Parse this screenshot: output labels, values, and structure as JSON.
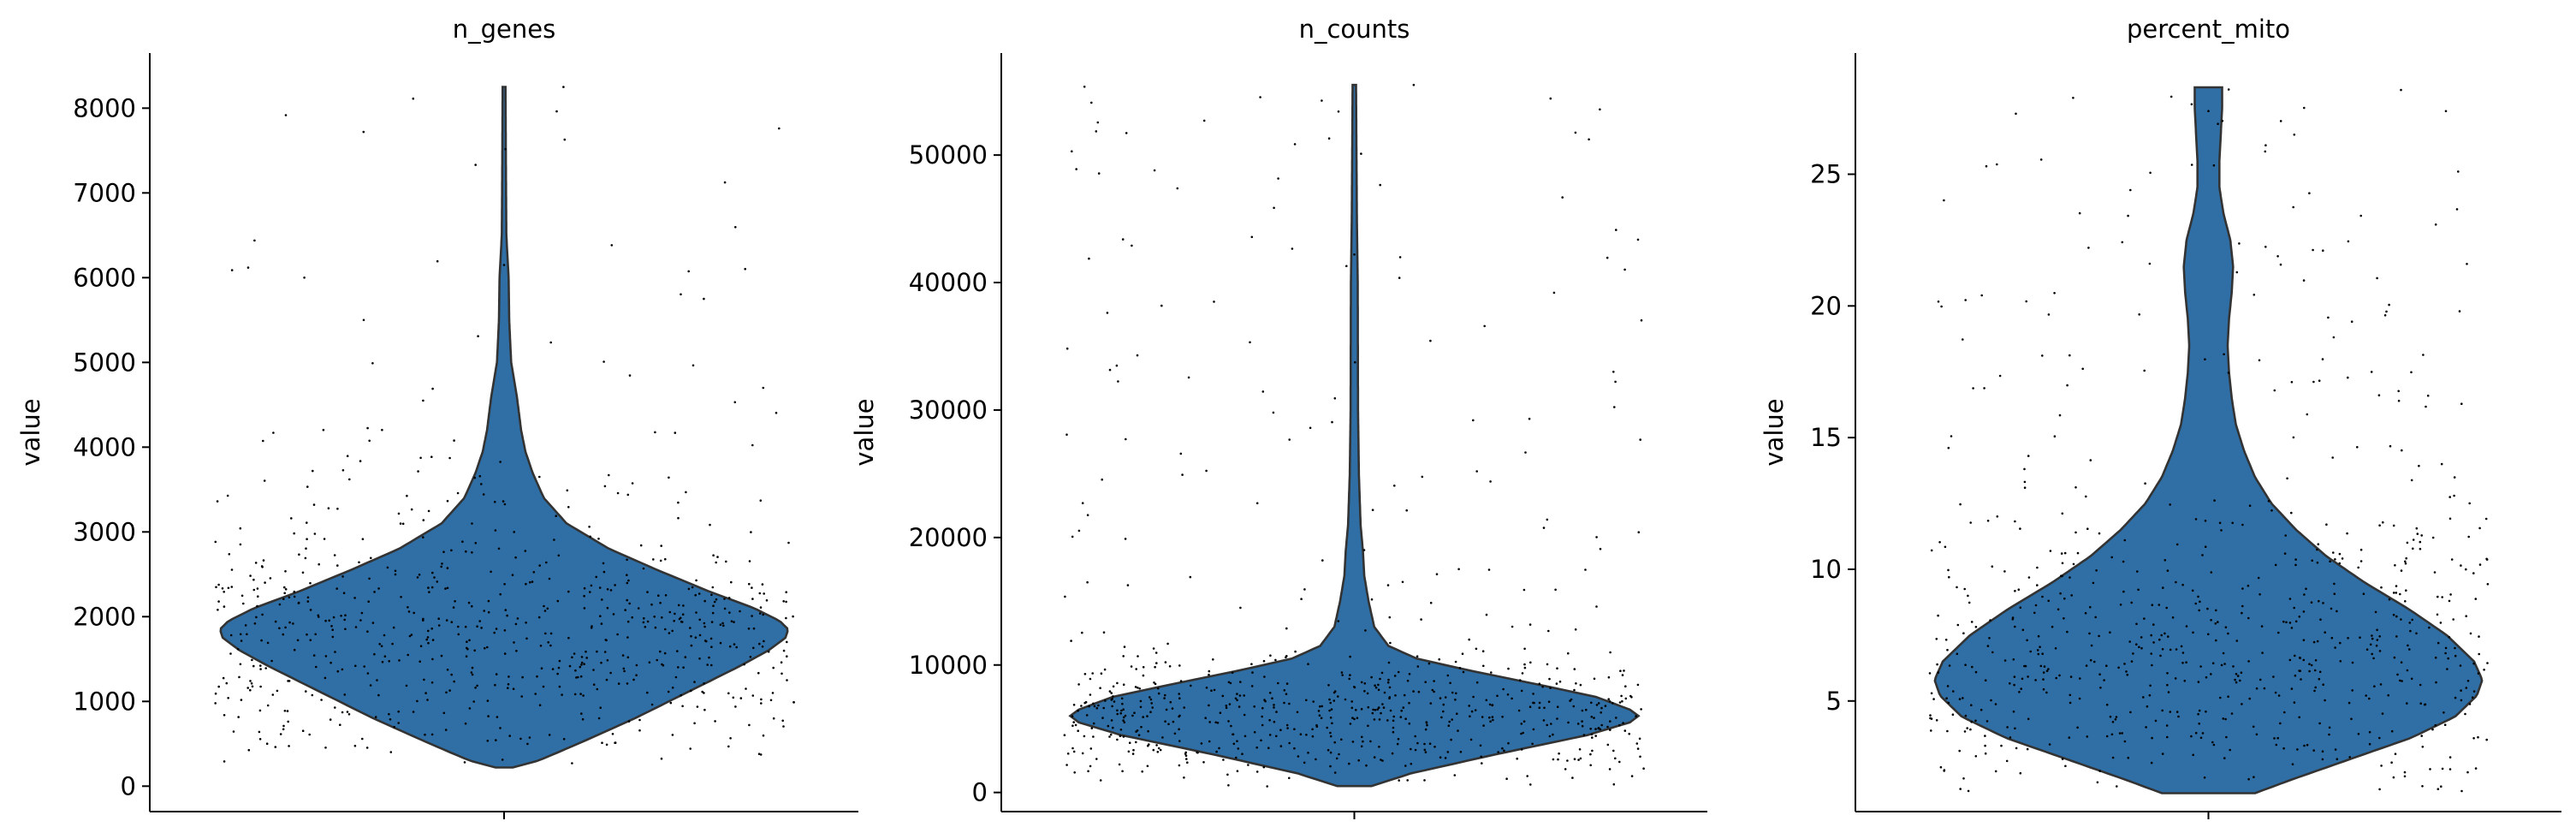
{
  "chart_data": [
    {
      "type": "violin",
      "title": "n_genes",
      "xlabel": "",
      "ylabel": "value",
      "ylim": [
        -300,
        8650
      ],
      "yticks": [
        0,
        1000,
        2000,
        3000,
        4000,
        5000,
        6000,
        7000,
        8000
      ],
      "ytick_labels": [
        "0",
        "1000",
        "2000",
        "3000",
        "4000",
        "5000",
        "6000",
        "7000",
        "8000"
      ],
      "fill_color": "#2f6fa6",
      "distribution_range": [
        220,
        8250
      ],
      "density_profile": [
        [
          220,
          0.03
        ],
        [
          300,
          0.12
        ],
        [
          500,
          0.26
        ],
        [
          800,
          0.46
        ],
        [
          1100,
          0.64
        ],
        [
          1400,
          0.82
        ],
        [
          1600,
          0.93
        ],
        [
          1750,
          0.99
        ],
        [
          1850,
          1.0
        ],
        [
          1950,
          0.97
        ],
        [
          2100,
          0.88
        ],
        [
          2300,
          0.72
        ],
        [
          2550,
          0.54
        ],
        [
          2800,
          0.37
        ],
        [
          3100,
          0.22
        ],
        [
          3400,
          0.14
        ],
        [
          3700,
          0.1
        ],
        [
          3950,
          0.075
        ],
        [
          4200,
          0.06
        ],
        [
          4600,
          0.045
        ],
        [
          5000,
          0.025
        ],
        [
          5500,
          0.018
        ],
        [
          6000,
          0.016
        ],
        [
          6500,
          0.008
        ],
        [
          7000,
          0.007
        ],
        [
          8250,
          0.005
        ]
      ],
      "n_points": 700,
      "point_outliers": [
        6000,
        6150,
        5750,
        5500,
        8250,
        4700,
        4550
      ]
    },
    {
      "type": "violin",
      "title": "n_counts",
      "xlabel": "",
      "ylabel": "value",
      "ylim": [
        -1500,
        58000
      ],
      "yticks": [
        0,
        10000,
        20000,
        30000,
        40000,
        50000
      ],
      "ytick_labels": [
        "0",
        "10000",
        "20000",
        "30000",
        "40000",
        "50000"
      ],
      "fill_color": "#2f6fa6",
      "distribution_range": [
        500,
        55500
      ],
      "density_profile": [
        [
          500,
          0.06
        ],
        [
          1500,
          0.2
        ],
        [
          3000,
          0.5
        ],
        [
          4500,
          0.82
        ],
        [
          5500,
          0.97
        ],
        [
          6000,
          1.0
        ],
        [
          6500,
          0.97
        ],
        [
          7500,
          0.85
        ],
        [
          8500,
          0.64
        ],
        [
          9500,
          0.42
        ],
        [
          10500,
          0.22
        ],
        [
          11500,
          0.12
        ],
        [
          13000,
          0.07
        ],
        [
          15000,
          0.05
        ],
        [
          17000,
          0.035
        ],
        [
          19000,
          0.03
        ],
        [
          21000,
          0.022
        ],
        [
          25000,
          0.016
        ],
        [
          30000,
          0.013
        ],
        [
          40000,
          0.012
        ],
        [
          45000,
          0.009
        ],
        [
          55500,
          0.006
        ]
      ],
      "n_points": 700,
      "point_outliers": [
        48800,
        42200,
        39200,
        38500,
        55500,
        33000,
        29800,
        29200
      ]
    },
    {
      "type": "violin",
      "title": "percent_mito",
      "xlabel": "",
      "ylabel": "value",
      "ylim": [
        0.8,
        29.6
      ],
      "yticks": [
        5,
        10,
        15,
        20,
        25
      ],
      "ytick_labels": [
        "5",
        "10",
        "15",
        "20",
        "25"
      ],
      "fill_color": "#2f6fa6",
      "distribution_range": [
        1.5,
        28.3
      ],
      "density_profile": [
        [
          1.5,
          0.17
        ],
        [
          2.0,
          0.3
        ],
        [
          2.8,
          0.52
        ],
        [
          3.6,
          0.74
        ],
        [
          4.4,
          0.9
        ],
        [
          5.2,
          0.98
        ],
        [
          5.8,
          1.0
        ],
        [
          6.5,
          0.97
        ],
        [
          7.5,
          0.87
        ],
        [
          8.5,
          0.73
        ],
        [
          9.5,
          0.57
        ],
        [
          10.5,
          0.43
        ],
        [
          11.5,
          0.32
        ],
        [
          12.5,
          0.23
        ],
        [
          13.5,
          0.17
        ],
        [
          14.5,
          0.13
        ],
        [
          15.5,
          0.1
        ],
        [
          16.5,
          0.085
        ],
        [
          17.5,
          0.075
        ],
        [
          18.5,
          0.07
        ],
        [
          19.5,
          0.075
        ],
        [
          20.5,
          0.085
        ],
        [
          21.5,
          0.09
        ],
        [
          22.5,
          0.08
        ],
        [
          23.5,
          0.055
        ],
        [
          24.5,
          0.04
        ],
        [
          25.5,
          0.04
        ],
        [
          26.5,
          0.045
        ],
        [
          27.5,
          0.05
        ],
        [
          28.3,
          0.05
        ]
      ],
      "n_points": 700,
      "point_outliers": [
        27.3,
        27.4,
        28.2,
        27.9,
        26.1,
        25.1,
        24.4,
        22.1
      ]
    }
  ]
}
